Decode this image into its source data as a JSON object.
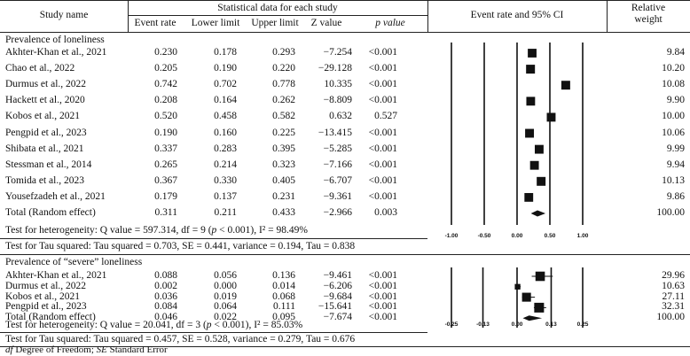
{
  "header": {
    "study_name": "Study name",
    "statistical_data": "Statistical data for each study",
    "event_rate": "Event rate",
    "lower_limit": "Lower limit",
    "upper_limit": "Upper limit",
    "z_value": "Z value",
    "p_value": "p value",
    "ci_title": "Event rate and 95% CI",
    "relative_weight_1": "Relative",
    "relative_weight_2": "weight"
  },
  "footnote_df": "df",
  "footnote_df_text": " Degree of Freedom; ",
  "footnote_se": "SE",
  "footnote_se_text": " Standard Error",
  "chart_data": [
    {
      "type": "forest",
      "section_title": "Prevalence of loneliness",
      "studies": [
        {
          "name": "Akhter-Khan et al., 2021",
          "event_rate": "0.230",
          "lower": "0.178",
          "upper": "0.293",
          "z": "−7.254",
          "p": "<0.001",
          "weight": "9.84"
        },
        {
          "name": "Chao et al., 2022",
          "event_rate": "0.205",
          "lower": "0.190",
          "upper": "0.220",
          "z": "−29.128",
          "p": "<0.001",
          "weight": "10.20"
        },
        {
          "name": "Durmus et al., 2022",
          "event_rate": "0.742",
          "lower": "0.702",
          "upper": "0.778",
          "z": "10.335",
          "p": "<0.001",
          "weight": "10.08"
        },
        {
          "name": "Hackett et al., 2020",
          "event_rate": "0.208",
          "lower": "0.164",
          "upper": "0.262",
          "z": "−8.809",
          "p": "<0.001",
          "weight": "9.90"
        },
        {
          "name": "Kobos et al., 2021",
          "event_rate": "0.520",
          "lower": "0.458",
          "upper": "0.582",
          "z": "0.632",
          "p": "0.527",
          "weight": "10.00"
        },
        {
          "name": "Pengpid et al., 2023",
          "event_rate": "0.190",
          "lower": "0.160",
          "upper": "0.225",
          "z": "−13.415",
          "p": "<0.001",
          "weight": "10.06"
        },
        {
          "name": "Shibata et al., 2021",
          "event_rate": "0.337",
          "lower": "0.283",
          "upper": "0.395",
          "z": "−5.285",
          "p": "<0.001",
          "weight": "9.99"
        },
        {
          "name": "Stessman et al., 2014",
          "event_rate": "0.265",
          "lower": "0.214",
          "upper": "0.323",
          "z": "−7.166",
          "p": "<0.001",
          "weight": "9.94"
        },
        {
          "name": "Tomida et al., 2023",
          "event_rate": "0.367",
          "lower": "0.330",
          "upper": "0.405",
          "z": "−6.707",
          "p": "<0.001",
          "weight": "10.13"
        },
        {
          "name": "Yousefzadeh et al., 2021",
          "event_rate": "0.179",
          "lower": "0.137",
          "upper": "0.231",
          "z": "−9.361",
          "p": "<0.001",
          "weight": "9.86"
        }
      ],
      "total": {
        "name": "Total (Random effect)",
        "event_rate": "0.311",
        "lower": "0.211",
        "upper": "0.433",
        "z": "−2.966",
        "p": "0.003",
        "weight": "100.00"
      },
      "heterogeneity_a": "Test for heterogeneity: Q value = 597.314, df = 9 (",
      "heterogeneity_p": "p",
      "heterogeneity_b": " < 0.001), I² = 98.49%",
      "tau_text": "Test for Tau squared: Tau squared = 0.703, SE = 0.441, variance = 0.194, Tau = 0.838",
      "axis_ticks": [
        "-1.00",
        "-0.50",
        "0.00",
        "0.50",
        "1.00"
      ],
      "xlim": [
        -1.0,
        1.0
      ]
    },
    {
      "type": "forest",
      "section_title": "Prevalence of “severe” loneliness",
      "studies": [
        {
          "name": "Akhter-Khan et al., 2021",
          "event_rate": "0.088",
          "lower": "0.056",
          "upper": "0.136",
          "z": "−9.461",
          "p": "<0.001",
          "weight": "29.96"
        },
        {
          "name": "Durmus et al., 2022",
          "event_rate": "0.002",
          "lower": "0.000",
          "upper": "0.014",
          "z": "−6.206",
          "p": "<0.001",
          "weight": "10.63"
        },
        {
          "name": "Kobos et al., 2021",
          "event_rate": "0.036",
          "lower": "0.019",
          "upper": "0.068",
          "z": "−9.684",
          "p": "<0.001",
          "weight": "27.11"
        },
        {
          "name": "Pengpid et al., 2023",
          "event_rate": "0.084",
          "lower": "0.064",
          "upper": "0.111",
          "z": "−15.641",
          "p": "<0.001",
          "weight": "32.31"
        }
      ],
      "total": {
        "name": "Total (Random effect)",
        "event_rate": "0.046",
        "lower": "0.022",
        "upper": "0.095",
        "z": "−7.674",
        "p": "<0.001",
        "weight": "100.00"
      },
      "heterogeneity_a": "Test for heterogeneity: Q value = 20.041, df = 3 (",
      "heterogeneity_p": "p",
      "heterogeneity_b": " < 0.001), I² = 85.03%",
      "tau_text": "Test for Tau squared: Tau squared = 0.457, SE = 0.528, variance = 0.279, Tau = 0.676",
      "axis_ticks": [
        "-0.25",
        "-0.13",
        "0.00",
        "0.13",
        "0.25"
      ],
      "xlim": [
        -0.25,
        0.25
      ]
    }
  ]
}
